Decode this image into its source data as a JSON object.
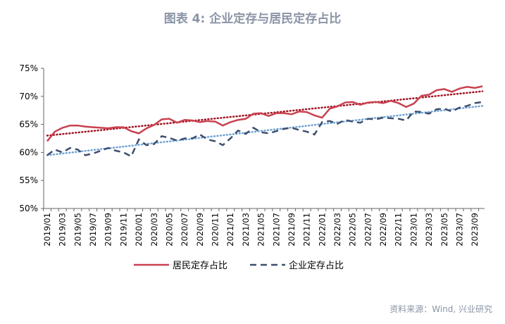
{
  "title": "图表 4:   企业定存与居民定存占比",
  "source": "资料来源：Wind, 兴业研究",
  "chart_data": {
    "type": "line",
    "title": "图表 4:   企业定存与居民定存占比",
    "x": [
      "2019/01",
      "2019/02",
      "2019/03",
      "2019/04",
      "2019/05",
      "2019/06",
      "2019/07",
      "2019/08",
      "2019/09",
      "2019/10",
      "2019/11",
      "2019/12",
      "2020/01",
      "2020/02",
      "2020/03",
      "2020/04",
      "2020/05",
      "2020/06",
      "2020/07",
      "2020/08",
      "2020/09",
      "2020/10",
      "2020/11",
      "2020/12",
      "2021/01",
      "2021/02",
      "2021/03",
      "2021/04",
      "2021/05",
      "2021/06",
      "2021/07",
      "2021/08",
      "2021/09",
      "2021/10",
      "2021/11",
      "2021/12",
      "2022/01",
      "2022/02",
      "2022/03",
      "2022/04",
      "2022/05",
      "2022/06",
      "2022/07",
      "2022/08",
      "2022/09",
      "2022/10",
      "2022/11",
      "2022/12",
      "2023/01",
      "2023/02",
      "2023/03",
      "2023/04",
      "2023/05",
      "2023/06",
      "2023/07",
      "2023/08",
      "2023/09",
      "2023/10"
    ],
    "xtick_labels": [
      "2019/01",
      "2019/03",
      "2019/05",
      "2019/07",
      "2019/09",
      "2019/11",
      "2020/01",
      "2020/03",
      "2020/05",
      "2020/07",
      "2020/09",
      "2020/11",
      "2021/01",
      "2021/03",
      "2021/05",
      "2021/07",
      "2021/09",
      "2021/11",
      "2022/01",
      "2022/03",
      "2022/05",
      "2022/07",
      "2022/09",
      "2022/11",
      "2023/01",
      "2023/03",
      "2023/05",
      "2023/07",
      "2023/09"
    ],
    "ylim": [
      50,
      75
    ],
    "yticks": [
      "50%",
      "55%",
      "60%",
      "65%",
      "70%",
      "75%"
    ],
    "series": [
      {
        "name": "居民定存占比",
        "color": "#c8414f",
        "style": "solid",
        "values": [
          62.0,
          63.7,
          64.4,
          64.8,
          64.8,
          64.6,
          64.5,
          64.4,
          64.3,
          64.5,
          64.5,
          63.8,
          63.4,
          64.3,
          64.9,
          65.9,
          66.0,
          65.3,
          65.8,
          65.7,
          65.4,
          65.6,
          65.5,
          64.8,
          65.4,
          65.8,
          66.0,
          66.9,
          67.0,
          66.5,
          67.0,
          67.0,
          66.8,
          67.3,
          67.2,
          66.6,
          66.2,
          67.8,
          68.2,
          68.9,
          69.0,
          68.5,
          68.9,
          69.0,
          68.8,
          69.2,
          68.8,
          68.1,
          68.7,
          70.1,
          70.3,
          71.1,
          71.3,
          70.8,
          71.4,
          71.7,
          71.5,
          71.8
        ],
        "trend": [
          63.0,
          70.9
        ],
        "trend_color": "#a01020"
      },
      {
        "name": "企业定存占比",
        "color": "#3d4f6e",
        "style": "dashed",
        "values": [
          59.5,
          60.5,
          60.0,
          60.8,
          60.5,
          59.5,
          59.8,
          60.3,
          60.8,
          60.3,
          60.0,
          59.3,
          62.3,
          61.3,
          61.5,
          62.9,
          62.6,
          62.1,
          62.5,
          62.5,
          63.2,
          62.3,
          62.0,
          61.3,
          62.5,
          63.9,
          63.3,
          64.4,
          63.6,
          63.4,
          63.8,
          64.2,
          64.4,
          64.0,
          63.7,
          63.2,
          65.4,
          65.6,
          65.1,
          65.8,
          65.5,
          65.3,
          66.0,
          65.9,
          66.2,
          66.1,
          66.0,
          65.7,
          67.3,
          67.2,
          66.9,
          67.7,
          67.8,
          67.3,
          68.0,
          68.3,
          68.8,
          69.0
        ],
        "trend": [
          59.5,
          68.3
        ],
        "trend_color": "#6fa3d4"
      }
    ],
    "legend": "bottom",
    "grid": false
  }
}
